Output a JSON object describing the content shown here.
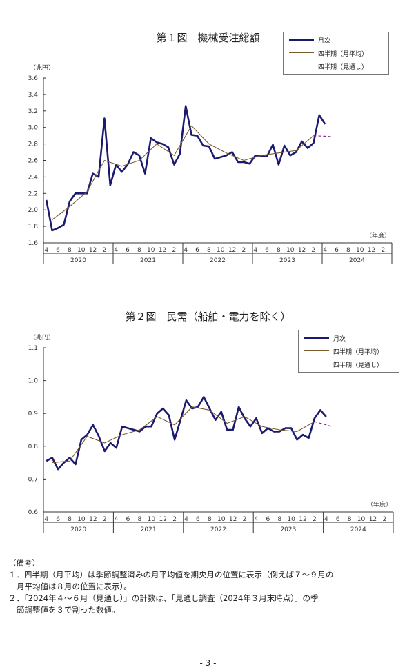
{
  "chart_data": [
    {
      "type": "line",
      "title": "第１図　機械受注総額",
      "unit": "（兆円）",
      "fiscal_label": "（年度）",
      "ylim": [
        1.6,
        3.6
      ],
      "yticks": [
        "1.6",
        "1.8",
        "2.0",
        "2.2",
        "2.4",
        "2.6",
        "2.8",
        "3.0",
        "3.2",
        "3.4",
        "3.6"
      ],
      "month_ticks": [
        "4",
        "6",
        "8",
        "10",
        "12",
        "2"
      ],
      "years": [
        "2020",
        "2021",
        "2022",
        "2023",
        "2024"
      ],
      "legend": {
        "monthly": "月次",
        "quarterly": "四半期（月平均）",
        "outlook": "四半期（見通し）"
      },
      "series": [
        {
          "name": "月次",
          "color": "#1a1a6e",
          "x_start": 0,
          "values": [
            2.12,
            1.75,
            1.78,
            1.82,
            2.1,
            2.2,
            2.2,
            2.2,
            2.44,
            2.4,
            3.11,
            2.3,
            2.55,
            2.46,
            2.55,
            2.7,
            2.66,
            2.44,
            2.87,
            2.82,
            2.8,
            2.76,
            2.55,
            2.68,
            3.26,
            2.91,
            2.9,
            2.78,
            2.77,
            2.62,
            2.64,
            2.66,
            2.7,
            2.58,
            2.58,
            2.56,
            2.66,
            2.65,
            2.65,
            2.79,
            2.55,
            2.78,
            2.66,
            2.7,
            2.83,
            2.75,
            2.81,
            3.15,
            3.04
          ]
        },
        {
          "name": "四半期（月平均）",
          "color": "#7a5c2e",
          "x_points": [
            1,
            4,
            7,
            10,
            13,
            16,
            19,
            22,
            25,
            28,
            31,
            34,
            37,
            40,
            43,
            46
          ],
          "values": [
            1.88,
            2.04,
            2.22,
            2.6,
            2.53,
            2.6,
            2.8,
            2.66,
            3.02,
            2.8,
            2.69,
            2.6,
            2.66,
            2.69,
            2.72,
            2.9
          ]
        },
        {
          "name": "四半期（見通し）",
          "color": "#7a1f8a",
          "x_points": [
            46,
            49
          ],
          "values": [
            2.9,
            2.89
          ]
        }
      ]
    },
    {
      "type": "line",
      "title": "第２図　民需（船舶・電力を除く）",
      "unit": "（兆円）",
      "fiscal_label": "（年度）",
      "ylim": [
        0.6,
        1.1
      ],
      "yticks": [
        "0.6",
        "0.7",
        "0.8",
        "0.9",
        "1.0",
        "1.1"
      ],
      "month_ticks": [
        "4",
        "6",
        "8",
        "10",
        "12",
        "2"
      ],
      "years": [
        "2020",
        "2021",
        "2022",
        "2023",
        "2024"
      ],
      "legend": {
        "monthly": "月次",
        "quarterly": "四半期（月平均）",
        "outlook": "四半期（見通し）"
      },
      "series": [
        {
          "name": "月次",
          "color": "#1a1a6e",
          "x_start": 0,
          "values": [
            0.755,
            0.765,
            0.73,
            0.75,
            0.765,
            0.745,
            0.82,
            0.835,
            0.865,
            0.83,
            0.785,
            0.81,
            0.795,
            0.86,
            0.855,
            0.85,
            0.845,
            0.86,
            0.86,
            0.9,
            0.915,
            0.895,
            0.82,
            0.88,
            0.94,
            0.915,
            0.92,
            0.95,
            0.915,
            0.88,
            0.905,
            0.85,
            0.85,
            0.92,
            0.885,
            0.86,
            0.885,
            0.84,
            0.855,
            0.845,
            0.845,
            0.855,
            0.855,
            0.82,
            0.835,
            0.825,
            0.885,
            0.91,
            0.89
          ]
        },
        {
          "name": "四半期（月平均）",
          "color": "#7a5c2e",
          "x_points": [
            1,
            4,
            7,
            10,
            13,
            16,
            19,
            22,
            25,
            28,
            31,
            34,
            37,
            40,
            43,
            46
          ],
          "values": [
            0.75,
            0.755,
            0.83,
            0.81,
            0.835,
            0.85,
            0.89,
            0.865,
            0.92,
            0.91,
            0.87,
            0.89,
            0.86,
            0.85,
            0.845,
            0.875
          ]
        },
        {
          "name": "四半期（見通し）",
          "color": "#7a1f8a",
          "x_points": [
            46,
            49
          ],
          "values": [
            0.875,
            0.86
          ]
        }
      ]
    }
  ],
  "notes": {
    "heading": "（備考）",
    "item1_line1": "１．四半期（月平均）は季節調整済みの月平均値を期央月の位置に表示（例えば７～９月の",
    "item1_line2": "月平均値は８月の位置に表示）。",
    "item2_line1": "２．「2024年４～６月（見通し）」の計数は、「見通し調査（2024年３月末時点）」の季",
    "item2_line2": "節調整値を３で割った数値。"
  },
  "page_number": "- 3 -"
}
